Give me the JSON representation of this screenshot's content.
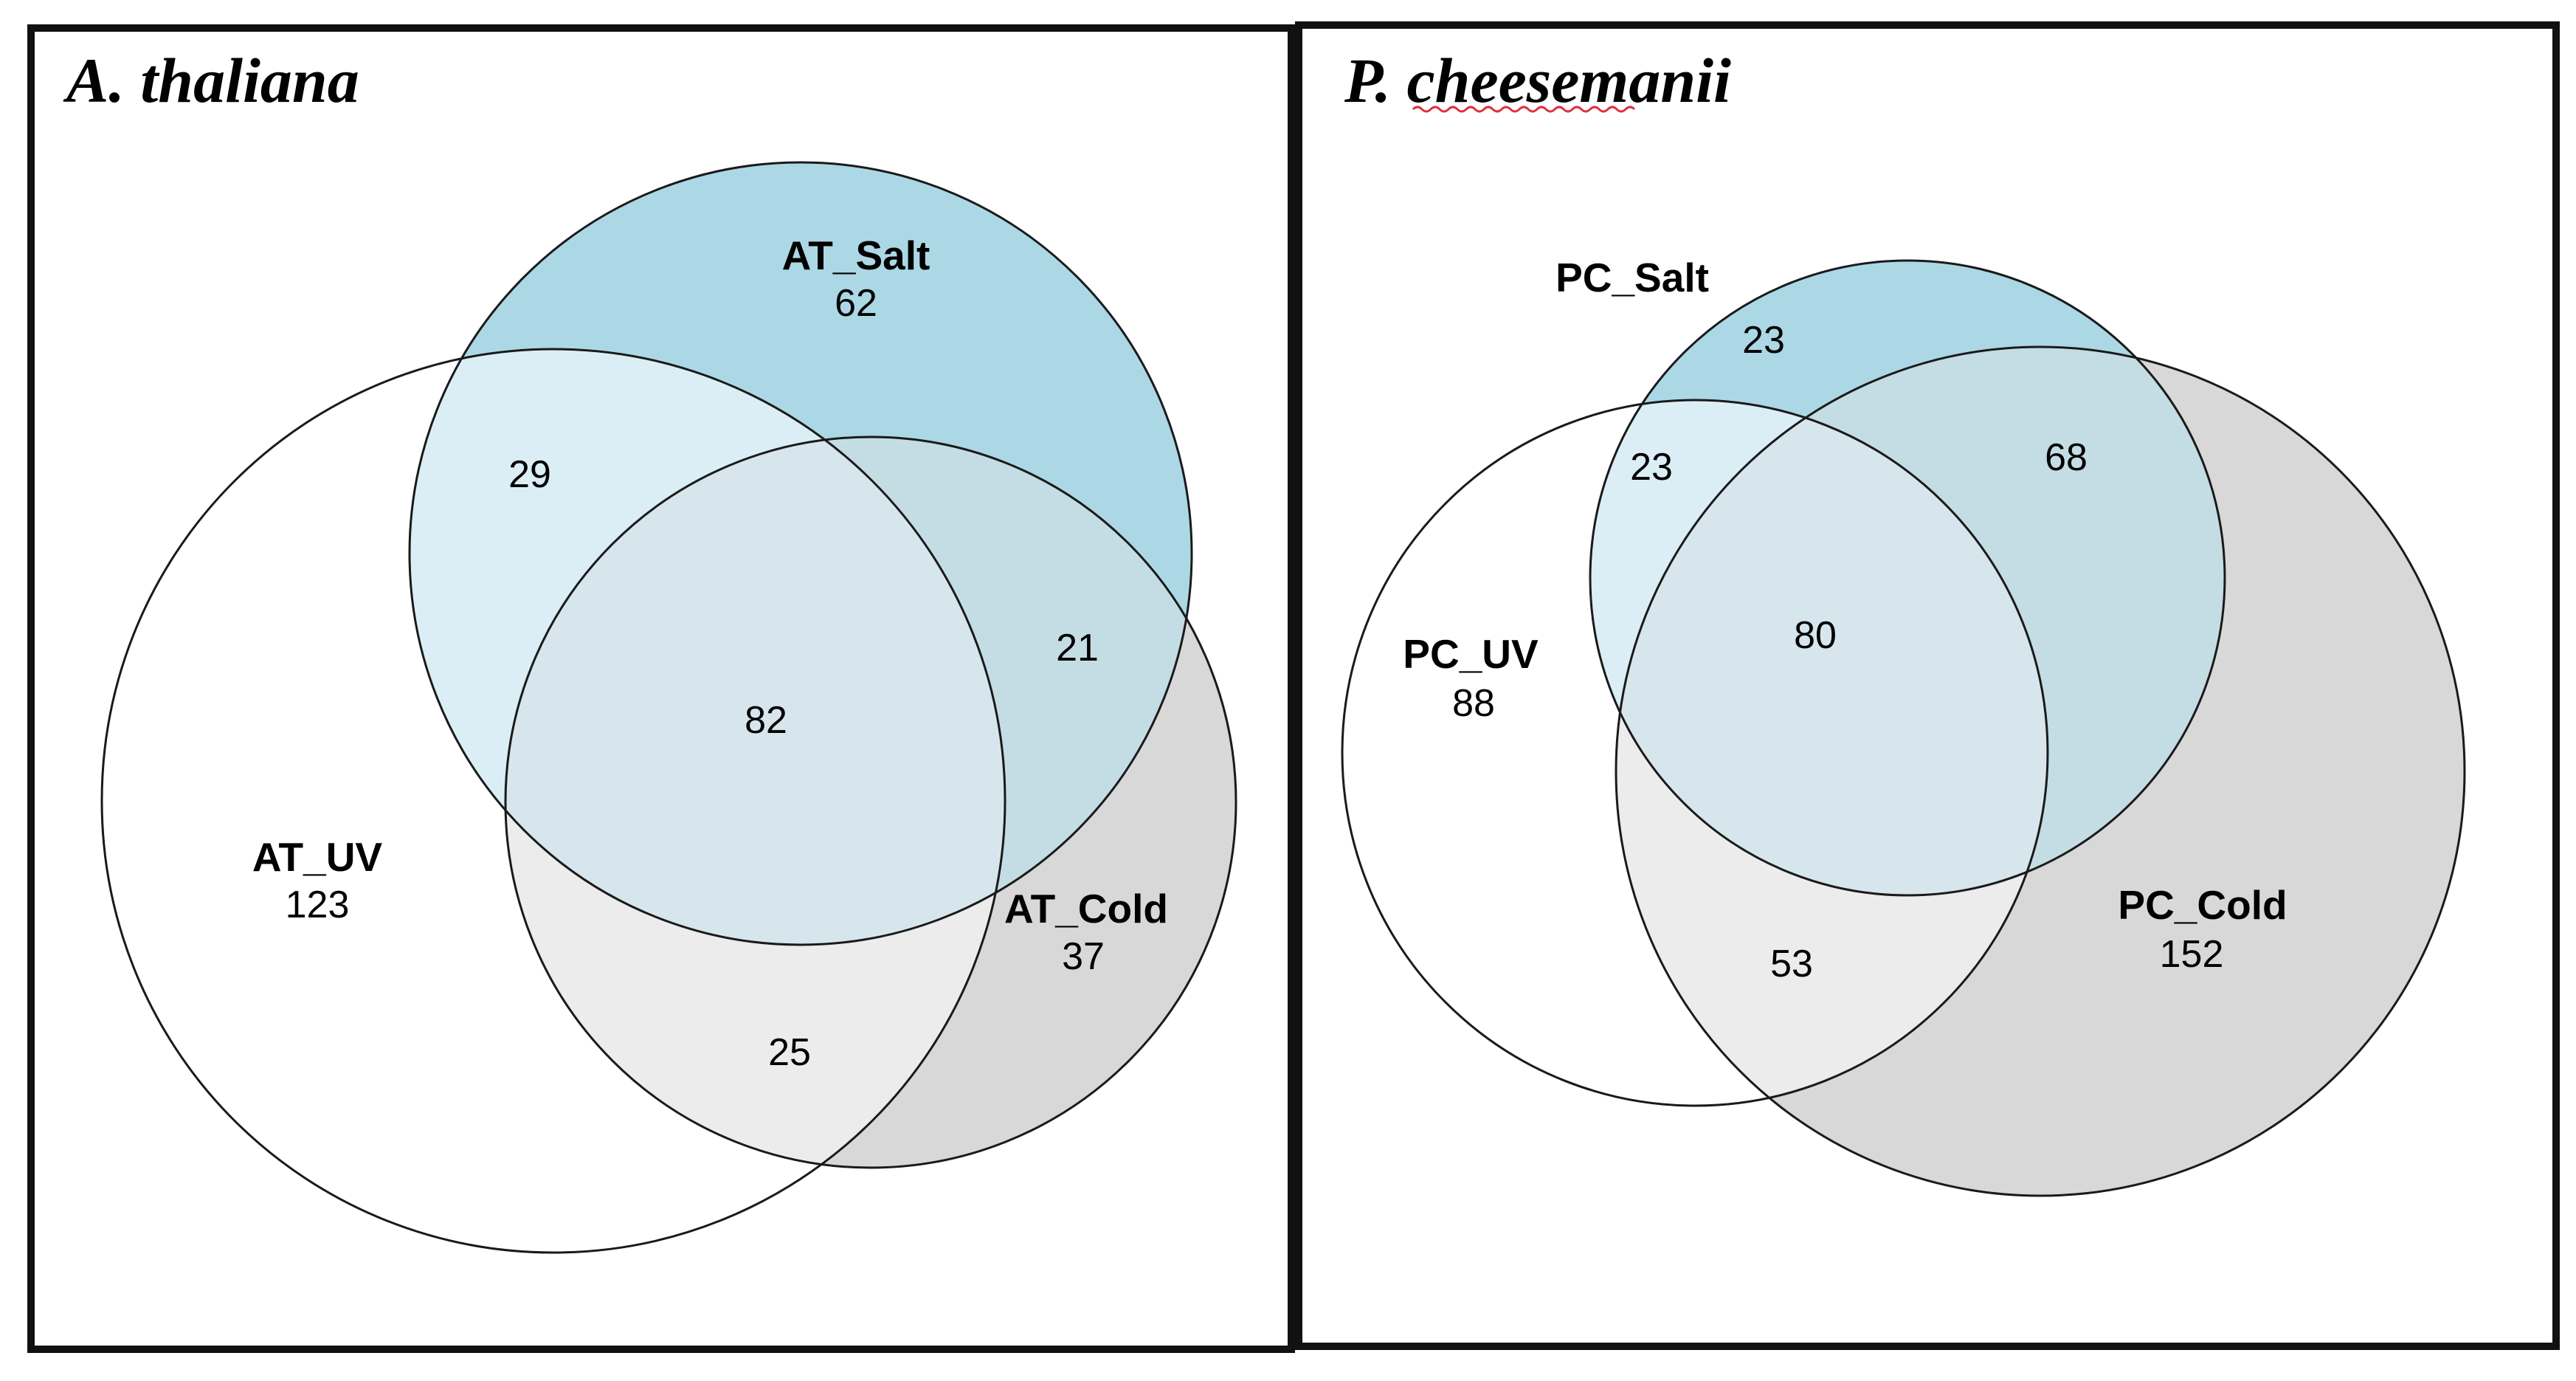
{
  "colors": {
    "salt": "#acd8e6",
    "cold": "#d8d8d8",
    "uv": "#ffffff",
    "frame": "#111111",
    "outline": "#1a1a1a"
  },
  "panels": [
    {
      "title": "A. thaliana",
      "sets": {
        "salt": {
          "label": "AT_Salt",
          "count": "62"
        },
        "uv": {
          "label": "AT_UV",
          "count": "123"
        },
        "cold": {
          "label": "AT_Cold",
          "count": "37"
        }
      },
      "overlaps": {
        "salt_uv": "29",
        "salt_cold": "21",
        "all": "82",
        "uv_cold": "25"
      }
    },
    {
      "title": "P. cheesemanii",
      "sets": {
        "salt": {
          "label": "PC_Salt",
          "count": "23"
        },
        "uv": {
          "label": "PC_UV",
          "count": "88"
        },
        "cold": {
          "label": "PC_Cold",
          "count": "152"
        }
      },
      "overlaps": {
        "salt_uv": "23",
        "salt_cold": "68",
        "all": "80",
        "uv_cold": "53"
      }
    }
  ]
}
